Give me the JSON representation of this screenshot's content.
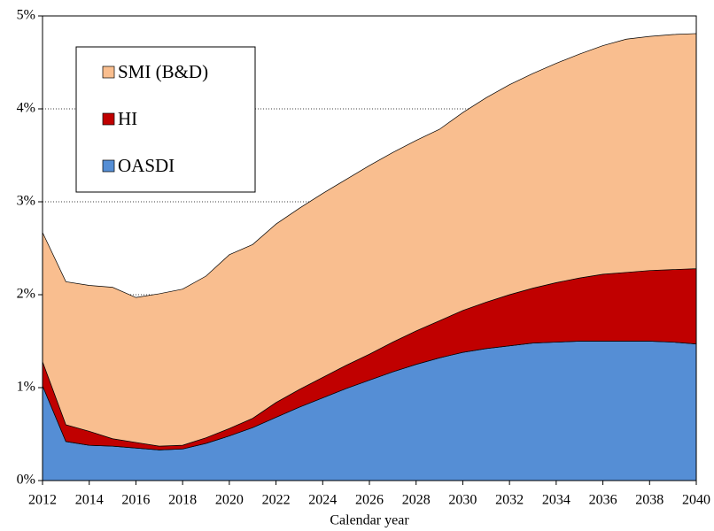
{
  "chart_data": {
    "type": "stacked_area",
    "x_label": "Calendar year",
    "x": [
      2012,
      2013,
      2014,
      2015,
      2016,
      2017,
      2018,
      2019,
      2020,
      2021,
      2022,
      2023,
      2024,
      2025,
      2026,
      2027,
      2028,
      2029,
      2030,
      2031,
      2032,
      2033,
      2034,
      2035,
      2036,
      2037,
      2038,
      2039,
      2040
    ],
    "series": [
      {
        "name": "OASDI",
        "color": "#558ed5",
        "values": [
          1.02,
          0.42,
          0.38,
          0.37,
          0.35,
          0.33,
          0.34,
          0.4,
          0.48,
          0.57,
          0.68,
          0.79,
          0.89,
          0.99,
          1.08,
          1.17,
          1.25,
          1.32,
          1.38,
          1.42,
          1.45,
          1.48,
          1.49,
          1.5,
          1.5,
          1.5,
          1.5,
          1.49,
          1.47
        ]
      },
      {
        "name": "HI",
        "color": "#c00000",
        "values": [
          0.26,
          0.18,
          0.15,
          0.08,
          0.06,
          0.04,
          0.04,
          0.06,
          0.08,
          0.1,
          0.16,
          0.19,
          0.22,
          0.25,
          0.28,
          0.32,
          0.36,
          0.4,
          0.45,
          0.5,
          0.55,
          0.59,
          0.64,
          0.68,
          0.72,
          0.74,
          0.76,
          0.78,
          0.81
        ]
      },
      {
        "name": "SMI (B&D)",
        "color": "#f9be8f",
        "values": [
          1.39,
          1.54,
          1.57,
          1.63,
          1.56,
          1.64,
          1.68,
          1.74,
          1.87,
          1.87,
          1.92,
          1.95,
          1.98,
          2.0,
          2.03,
          2.04,
          2.05,
          2.06,
          2.13,
          2.2,
          2.26,
          2.31,
          2.36,
          2.41,
          2.46,
          2.51,
          2.52,
          2.53,
          2.53
        ]
      }
    ],
    "xlim": [
      2012,
      2040
    ],
    "xticks": [
      2012,
      2014,
      2016,
      2018,
      2020,
      2022,
      2024,
      2026,
      2028,
      2030,
      2032,
      2034,
      2036,
      2038,
      2040
    ],
    "ylim": [
      0,
      5
    ],
    "yticks": [
      {
        "value": 0,
        "label": "0%"
      },
      {
        "value": 1,
        "label": "1%"
      },
      {
        "value": 2,
        "label": "2%"
      },
      {
        "value": 3,
        "label": "3%"
      },
      {
        "value": 4,
        "label": "4%"
      },
      {
        "value": 5,
        "label": "5%"
      }
    ],
    "grid": true,
    "legend": "upper left"
  }
}
